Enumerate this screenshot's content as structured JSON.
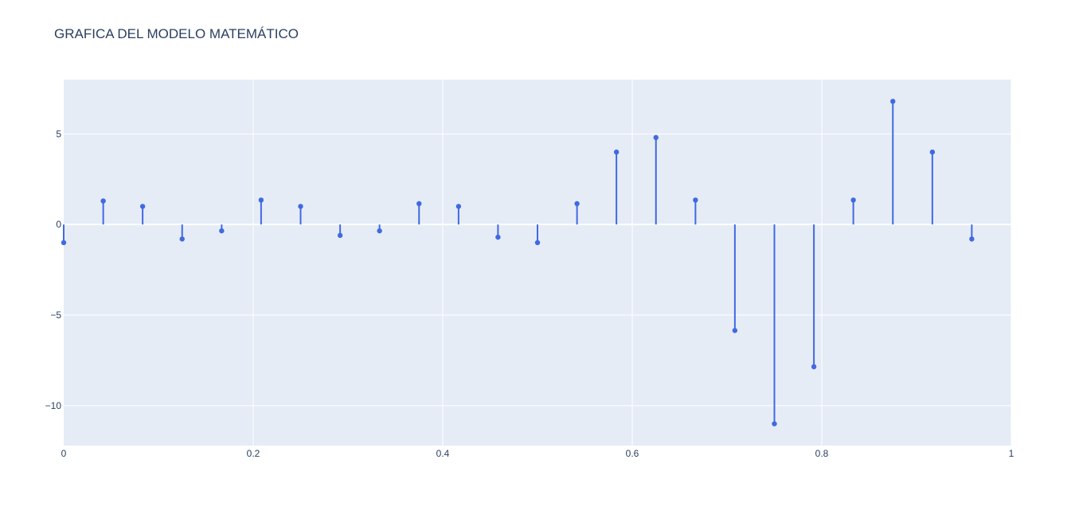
{
  "chart_data": {
    "type": "stem",
    "title": "GRAFICA DEL MODELO MATEMÁTICO",
    "xlabel": "",
    "ylabel": "",
    "xlim": [
      0,
      1
    ],
    "ylim": [
      -12.2,
      8.0
    ],
    "x_ticks": [
      0,
      0.2,
      0.4,
      0.6,
      0.8,
      1
    ],
    "x_tick_labels": [
      "0",
      "0.2",
      "0.4",
      "0.6",
      "0.8",
      "1"
    ],
    "y_ticks": [
      5,
      0,
      -5,
      -10
    ],
    "y_tick_labels": [
      "5",
      "0",
      "−5",
      "−10"
    ],
    "grid": true,
    "series": [
      {
        "x": [
          0,
          0.0417,
          0.0833,
          0.125,
          0.1667,
          0.2083,
          0.25,
          0.2917,
          0.3333,
          0.375,
          0.4167,
          0.4583,
          0.5,
          0.5417,
          0.5833,
          0.625,
          0.6667,
          0.7083,
          0.75,
          0.7917,
          0.8333,
          0.875,
          0.9167,
          0.9583
        ],
        "values": [
          -1.0,
          1.3,
          1.0,
          -0.8,
          -0.35,
          1.35,
          1.0,
          -0.6,
          -0.35,
          1.15,
          1.0,
          -0.7,
          -1.0,
          1.15,
          4.0,
          4.8,
          1.35,
          -5.85,
          -11.0,
          -7.85,
          1.35,
          6.8,
          4.0,
          -0.8
        ]
      }
    ],
    "colors": {
      "stem": "#4169e1",
      "plot_bg": "#e5ecf6",
      "grid": "#ffffff",
      "text": "#2a3f5f"
    }
  }
}
